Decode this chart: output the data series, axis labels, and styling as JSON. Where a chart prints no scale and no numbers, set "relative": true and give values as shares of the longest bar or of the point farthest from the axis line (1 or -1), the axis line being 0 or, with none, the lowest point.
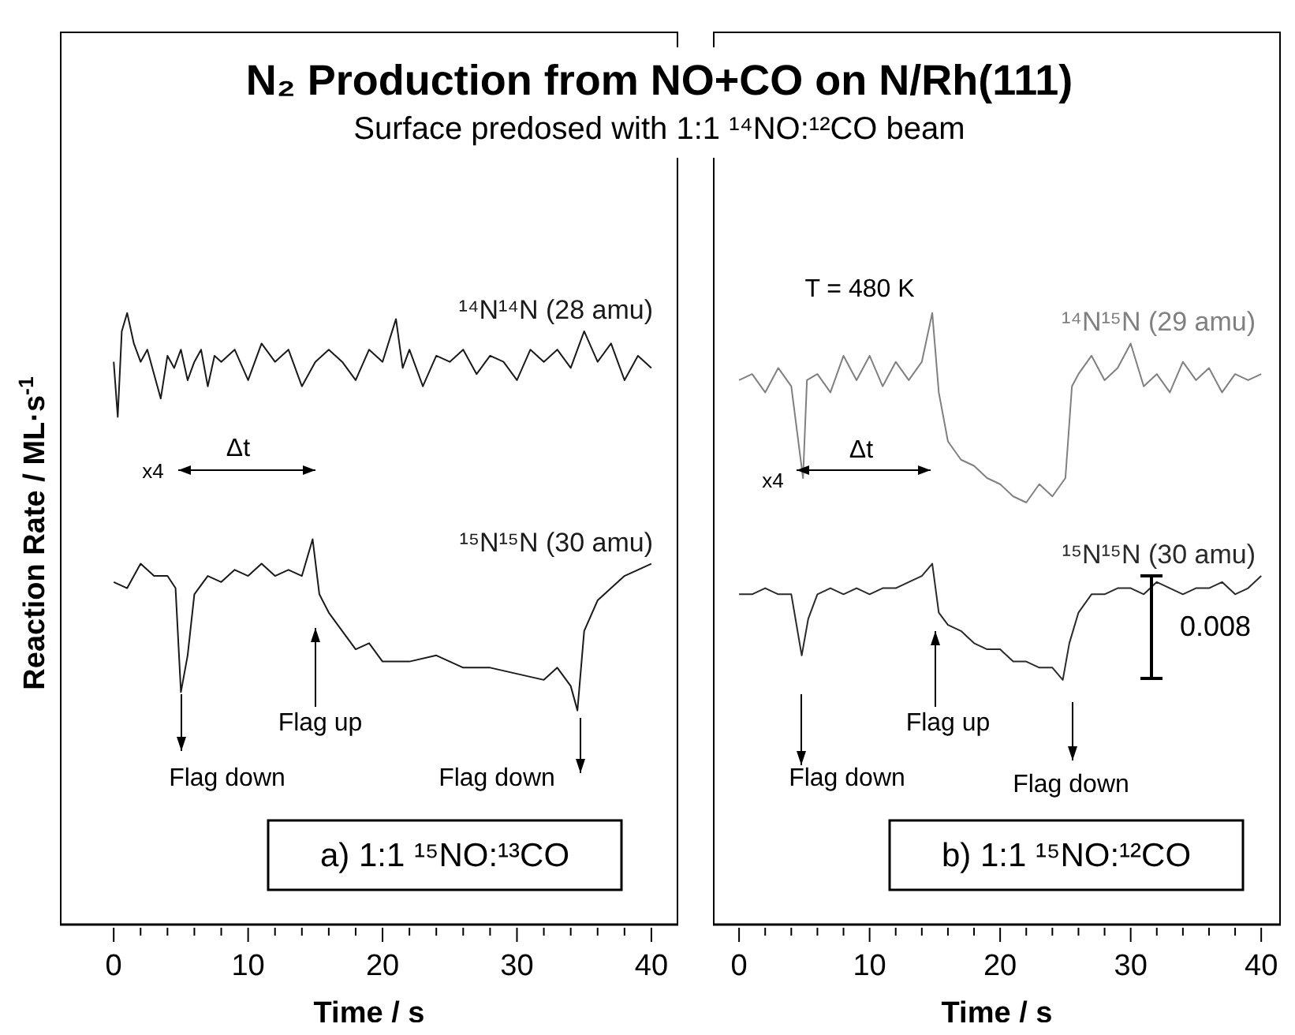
{
  "chart_data": [
    {
      "type": "line",
      "title": "N₂ Production from NO+CO on N/Rh(111)",
      "subtitle": "Surface predosed with 1:1 ¹⁴NO:¹²CO beam",
      "ylabel": "Reaction Rate / ML·s$^{-1}$",
      "xlabel": "Time / s",
      "relative": true,
      "xlim": [
        -4,
        42
      ],
      "xticks": [
        0,
        {
          "value": 2,
          "label": null
        },
        {
          "value": 4,
          "label": null
        },
        {
          "value": 6,
          "label": null
        },
        {
          "value": 8,
          "label": null
        },
        10,
        {
          "value": 12,
          "label": null
        },
        {
          "value": 14,
          "label": null
        },
        {
          "value": 16,
          "label": null
        },
        {
          "value": 18,
          "label": null
        },
        20,
        {
          "value": 22,
          "label": null
        },
        {
          "value": 24,
          "label": null
        },
        {
          "value": 26,
          "label": null
        },
        {
          "value": 28,
          "label": null
        },
        30,
        {
          "value": 32,
          "label": null
        },
        {
          "value": 34,
          "label": null
        },
        {
          "value": 36,
          "label": null
        },
        {
          "value": 38,
          "label": null
        },
        40
      ],
      "series": [
        {
          "name": "¹⁴N¹⁴N (28 amu)",
          "color": "#1a1a1a",
          "x": [
            0,
            0.3,
            0.6,
            1,
            1.5,
            2,
            2.5,
            3,
            3.5,
            4,
            4.5,
            5,
            5.5,
            6,
            6.5,
            7,
            7.5,
            8,
            9,
            10,
            10.5,
            11,
            12,
            13,
            14,
            15,
            16,
            17,
            18,
            19,
            20,
            21,
            21.5,
            22,
            23,
            24,
            25,
            26,
            27,
            28,
            29,
            30,
            31,
            32,
            33,
            34,
            35,
            36,
            37,
            38,
            39,
            40
          ],
          "values": [
            0.92,
            0.83,
            0.97,
            1,
            0.95,
            0.92,
            0.94,
            0.9,
            0.86,
            0.93,
            0.91,
            0.94,
            0.89,
            0.92,
            0.94,
            0.88,
            0.93,
            0.92,
            0.94,
            0.89,
            0.92,
            0.95,
            0.92,
            0.94,
            0.88,
            0.92,
            0.94,
            0.92,
            0.89,
            0.94,
            0.92,
            0.99,
            0.91,
            0.94,
            0.88,
            0.93,
            0.92,
            0.94,
            0.9,
            0.93,
            0.92,
            0.89,
            0.94,
            0.92,
            0.94,
            0.91,
            0.97,
            0.92,
            0.95,
            0.89,
            0.93,
            0.91
          ]
        },
        {
          "name": "¹⁵N¹⁵N (30 amu)",
          "color": "#1a1a1a",
          "x": [
            0,
            1,
            2,
            3,
            4,
            4.6,
            5,
            5.5,
            6,
            7,
            8,
            9,
            10,
            11,
            12,
            13,
            14,
            14.8,
            15.3,
            16,
            17,
            18,
            19,
            20,
            22,
            24,
            26,
            28,
            30,
            32,
            33,
            34,
            34.5,
            35,
            36,
            37,
            38,
            39,
            40
          ],
          "values": [
            0.56,
            0.55,
            0.59,
            0.57,
            0.57,
            0.55,
            0.38,
            0.44,
            0.54,
            0.57,
            0.56,
            0.58,
            0.57,
            0.59,
            0.57,
            0.58,
            0.57,
            0.63,
            0.54,
            0.51,
            0.48,
            0.45,
            0.46,
            0.43,
            0.43,
            0.44,
            0.42,
            0.42,
            0.41,
            0.4,
            0.42,
            0.39,
            0.35,
            0.48,
            0.53,
            0.55,
            0.57,
            0.58,
            0.59
          ]
        }
      ],
      "annotations": [
        "x4",
        "a) 1:1 ¹⁵NO:¹³CO",
        "Δt",
        "Flag down",
        "Flag up",
        "Flag down"
      ]
    },
    {
      "type": "line",
      "xlabel": "Time / s",
      "relative": true,
      "xlim": [
        -2,
        41.5
      ],
      "xticks": [
        0,
        {
          "value": 2,
          "label": null
        },
        {
          "value": 4,
          "label": null
        },
        {
          "value": 6,
          "label": null
        },
        {
          "value": 8,
          "label": null
        },
        10,
        {
          "value": 12,
          "label": null
        },
        {
          "value": 14,
          "label": null
        },
        {
          "value": 16,
          "label": null
        },
        {
          "value": 18,
          "label": null
        },
        20,
        {
          "value": 22,
          "label": null
        },
        {
          "value": 24,
          "label": null
        },
        {
          "value": 26,
          "label": null
        },
        {
          "value": 28,
          "label": null
        },
        30,
        {
          "value": 32,
          "label": null
        },
        {
          "value": 34,
          "label": null
        },
        {
          "value": 36,
          "label": null
        },
        {
          "value": 38,
          "label": null
        },
        40
      ],
      "series": [
        {
          "name": "¹⁴N¹⁵N (29 amu)",
          "color": "#808080",
          "x": [
            0,
            1,
            2,
            3,
            4,
            4.9,
            5.2,
            6,
            7,
            8,
            9,
            10,
            11,
            12,
            13,
            14,
            14.8,
            15.3,
            16,
            17,
            18,
            19,
            20,
            21,
            22,
            23,
            24,
            25,
            25.5,
            26,
            27,
            28,
            29,
            30,
            31,
            32,
            33,
            34,
            35,
            36,
            37,
            38,
            39,
            40
          ],
          "values": [
            0.89,
            0.9,
            0.87,
            0.91,
            0.88,
            0.73,
            0.89,
            0.9,
            0.87,
            0.93,
            0.89,
            0.93,
            0.88,
            0.92,
            0.89,
            0.92,
            1,
            0.87,
            0.79,
            0.76,
            0.75,
            0.73,
            0.72,
            0.7,
            0.69,
            0.72,
            0.7,
            0.73,
            0.88,
            0.9,
            0.93,
            0.89,
            0.91,
            0.95,
            0.88,
            0.9,
            0.87,
            0.92,
            0.89,
            0.91,
            0.87,
            0.9,
            0.89,
            0.9
          ]
        },
        {
          "name": "¹⁵N¹⁵N (30 amu)",
          "color": "#2a2a2a",
          "x": [
            0,
            1,
            2,
            3,
            4,
            4.8,
            5.3,
            6,
            7,
            8,
            9,
            10,
            11,
            12,
            13,
            14,
            14.8,
            15.3,
            16,
            17,
            18,
            19,
            20,
            21,
            22,
            23,
            24,
            24.8,
            25.3,
            26,
            27,
            28,
            29,
            30,
            31,
            32,
            33,
            34,
            35,
            36,
            37,
            38,
            39,
            40
          ],
          "values": [
            0.54,
            0.54,
            0.55,
            0.54,
            0.54,
            0.44,
            0.5,
            0.54,
            0.55,
            0.54,
            0.55,
            0.54,
            0.55,
            0.55,
            0.56,
            0.57,
            0.59,
            0.51,
            0.49,
            0.48,
            0.46,
            0.45,
            0.45,
            0.43,
            0.43,
            0.42,
            0.42,
            0.4,
            0.46,
            0.51,
            0.54,
            0.54,
            0.55,
            0.55,
            0.54,
            0.56,
            0.55,
            0.54,
            0.55,
            0.55,
            0.56,
            0.54,
            0.55,
            0.57
          ]
        }
      ],
      "annotations": [
        "T = 480 K",
        "x4",
        "0.008",
        "b) 1:1 ¹⁵NO:¹²CO",
        "Δt",
        "Flag down",
        "Flag up",
        "Flag down"
      ]
    }
  ]
}
